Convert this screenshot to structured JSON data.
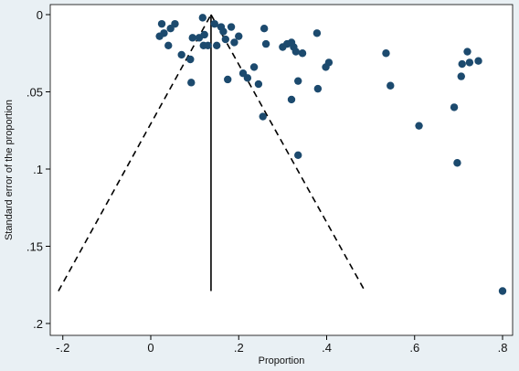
{
  "chart_data": {
    "type": "scatter",
    "xlabel": "Proportion",
    "ylabel": "Standard error of the proportion",
    "xlim": [
      -0.2,
      0.8
    ],
    "ylim": [
      0,
      0.2
    ],
    "y_reversed": true,
    "x_ticks": [
      {
        "value": -0.2,
        "label": "-.2"
      },
      {
        "value": 0,
        "label": "0"
      },
      {
        "value": 0.2,
        "label": ".2"
      },
      {
        "value": 0.4,
        "label": ".4"
      },
      {
        "value": 0.6,
        "label": ".6"
      },
      {
        "value": 0.8,
        "label": ".8"
      }
    ],
    "y_ticks": [
      {
        "value": 0,
        "label": "0"
      },
      {
        "value": 0.05,
        "label": ".05"
      },
      {
        "value": 0.1,
        "label": ".1"
      },
      {
        "value": 0.15,
        "label": ".15"
      },
      {
        "value": 0.2,
        "label": ".2"
      }
    ],
    "grid": false,
    "colors": {
      "points": "#1c4a6e",
      "background": "#e9f0f4",
      "plot_area": "#ffffff",
      "lines": "#000000"
    },
    "pooled_estimate": 0.137,
    "funnel": {
      "apex": [
        0.137,
        0
      ],
      "left_base": [
        -0.21,
        0.179
      ],
      "right_base": [
        0.487,
        0.179
      ]
    },
    "points": [
      [
        0.025,
        0.006
      ],
      [
        0.03,
        0.012
      ],
      [
        0.045,
        0.009
      ],
      [
        0.055,
        0.006
      ],
      [
        0.02,
        0.014
      ],
      [
        0.04,
        0.02
      ],
      [
        0.07,
        0.026
      ],
      [
        0.09,
        0.029
      ],
      [
        0.095,
        0.015
      ],
      [
        0.092,
        0.044
      ],
      [
        0.118,
        0.002
      ],
      [
        0.11,
        0.015
      ],
      [
        0.122,
        0.013
      ],
      [
        0.12,
        0.02
      ],
      [
        0.13,
        0.02
      ],
      [
        0.145,
        0.006
      ],
      [
        0.15,
        0.02
      ],
      [
        0.16,
        0.008
      ],
      [
        0.165,
        0.011
      ],
      [
        0.17,
        0.016
      ],
      [
        0.183,
        0.008
      ],
      [
        0.19,
        0.018
      ],
      [
        0.2,
        0.014
      ],
      [
        0.175,
        0.042
      ],
      [
        0.21,
        0.038
      ],
      [
        0.22,
        0.041
      ],
      [
        0.235,
        0.034
      ],
      [
        0.245,
        0.045
      ],
      [
        0.258,
        0.009
      ],
      [
        0.262,
        0.019
      ],
      [
        0.255,
        0.066
      ],
      [
        0.3,
        0.021
      ],
      [
        0.31,
        0.019
      ],
      [
        0.32,
        0.018
      ],
      [
        0.325,
        0.021
      ],
      [
        0.33,
        0.024
      ],
      [
        0.32,
        0.055
      ],
      [
        0.335,
        0.043
      ],
      [
        0.345,
        0.025
      ],
      [
        0.335,
        0.091
      ],
      [
        0.378,
        0.012
      ],
      [
        0.38,
        0.048
      ],
      [
        0.398,
        0.034
      ],
      [
        0.405,
        0.031
      ],
      [
        0.535,
        0.025
      ],
      [
        0.545,
        0.046
      ],
      [
        0.61,
        0.072
      ],
      [
        0.69,
        0.06
      ],
      [
        0.697,
        0.096
      ],
      [
        0.706,
        0.04
      ],
      [
        0.708,
        0.032
      ],
      [
        0.72,
        0.024
      ],
      [
        0.725,
        0.031
      ],
      [
        0.745,
        0.03
      ],
      [
        0.8,
        0.179
      ]
    ]
  }
}
